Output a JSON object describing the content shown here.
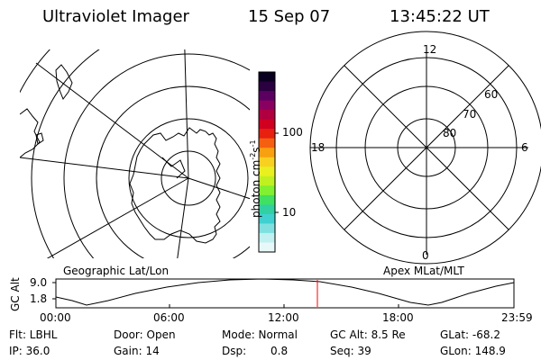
{
  "header": {
    "instrument": "Ultraviolet Imager",
    "date": "15 Sep 07",
    "time": "13:45:22 UT"
  },
  "left_panel": {
    "caption": "Geographic Lat/Lon"
  },
  "right_panel": {
    "caption": "Apex MLat/MLT",
    "mlt_labels": {
      "top": "12",
      "right": "6",
      "bottom": "0",
      "left": "18"
    },
    "lat_labels": [
      "60",
      "70",
      "80"
    ]
  },
  "colorbar": {
    "unit": "photon cm",
    "unit_exp1": "-2",
    "unit_mid": "s",
    "unit_exp2": "-1",
    "ticks": [
      "100",
      "10"
    ],
    "colors": [
      "#0a0020",
      "#2a0040",
      "#5a0060",
      "#8a0060",
      "#b00040",
      "#d00020",
      "#e82010",
      "#f46010",
      "#f8a010",
      "#f8d020",
      "#e8f020",
      "#c0f020",
      "#80f030",
      "#40e060",
      "#30d0a0",
      "#40d0d0",
      "#80e0e0",
      "#c0f0f0",
      "#e8f8f8"
    ]
  },
  "alt_plot": {
    "ylabel": "GC Alt",
    "yticks": [
      "9.0",
      "1.8"
    ],
    "xticks": [
      "00:00",
      "06:00",
      "12:00",
      "18:00",
      "23:59"
    ],
    "marker_color": "#ff0000"
  },
  "info": {
    "flt": "Flt: LBHL",
    "ip": "IP: 36.0",
    "door": "Door: Open",
    "gain": "Gain: 14",
    "mode": "Mode: Normal",
    "dsp_label": "Dsp:",
    "dsp_value": "0.8",
    "gcalt": "GC Alt: 8.5 Re",
    "seq": "Seq: 39",
    "glat": "GLat: -68.2",
    "glon": "GLon: 148.9"
  }
}
